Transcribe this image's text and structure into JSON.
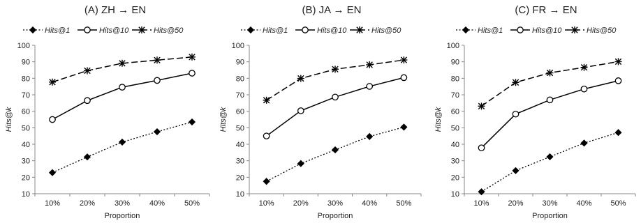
{
  "chart_data": [
    {
      "type": "line",
      "title": "(A) ZH → EN",
      "xlabel": "Proportion",
      "ylabel": "Hits@k",
      "categories": [
        "10%",
        "20%",
        "30%",
        "40%",
        "50%"
      ],
      "ylim": [
        10,
        100
      ],
      "yticks": [
        10,
        20,
        30,
        40,
        50,
        60,
        70,
        80,
        90,
        100
      ],
      "grid": false,
      "legend": "top",
      "series": [
        {
          "name": "Hits@1",
          "values": [
            22.8,
            32.3,
            41.3,
            47.6,
            53.5
          ]
        },
        {
          "name": "Hits@10",
          "values": [
            55.0,
            66.5,
            74.6,
            78.7,
            83.1
          ]
        },
        {
          "name": "Hits@50",
          "values": [
            77.7,
            84.6,
            89.1,
            91.0,
            92.9
          ]
        }
      ]
    },
    {
      "type": "line",
      "title": "(B) JA → EN",
      "xlabel": "Proportion",
      "ylabel": "Hits@k",
      "categories": [
        "10%",
        "20%",
        "30%",
        "40%",
        "50%"
      ],
      "ylim": [
        10,
        100
      ],
      "yticks": [
        10,
        20,
        30,
        40,
        50,
        60,
        70,
        80,
        90,
        100
      ],
      "grid": false,
      "legend": "top",
      "series": [
        {
          "name": "Hits@1",
          "values": [
            17.5,
            28.3,
            36.6,
            44.7,
            50.4
          ]
        },
        {
          "name": "Hits@10",
          "values": [
            45.0,
            60.3,
            68.6,
            75.1,
            80.4
          ]
        },
        {
          "name": "Hits@50",
          "values": [
            66.7,
            79.9,
            85.5,
            88.2,
            91.1
          ]
        }
      ]
    },
    {
      "type": "line",
      "title": "(C) FR → EN",
      "xlabel": "Proportion",
      "ylabel": "Hits@k",
      "categories": [
        "10%",
        "20%",
        "30%",
        "40%",
        "50%"
      ],
      "ylim": [
        10,
        100
      ],
      "yticks": [
        10,
        20,
        30,
        40,
        50,
        60,
        70,
        80,
        90,
        100
      ],
      "grid": false,
      "legend": "top",
      "series": [
        {
          "name": "Hits@1",
          "values": [
            11.2,
            24.0,
            32.4,
            40.7,
            47.1
          ]
        },
        {
          "name": "Hits@10",
          "values": [
            37.8,
            58.3,
            66.9,
            73.5,
            78.5
          ]
        },
        {
          "name": "Hits@50",
          "values": [
            63.1,
            77.5,
            83.3,
            86.6,
            90.1
          ]
        }
      ]
    }
  ]
}
